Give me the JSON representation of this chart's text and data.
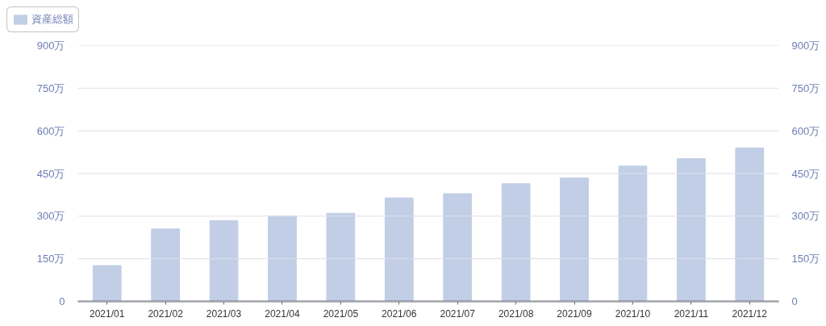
{
  "chart_data": {
    "type": "bar",
    "categories": [
      "2021/01",
      "2021/02",
      "2021/03",
      "2021/04",
      "2021/05",
      "2021/06",
      "2021/07",
      "2021/08",
      "2021/09",
      "2021/10",
      "2021/11",
      "2021/12"
    ],
    "series": [
      {
        "name": "資産総額",
        "color": "#c1cee6",
        "values": [
          126,
          255,
          284,
          300,
          310,
          364,
          379,
          414,
          434,
          476,
          502,
          540
        ]
      }
    ],
    "ylim": [
      0,
      900
    ],
    "yticks": [
      0,
      {
        "value": 150,
        "label": "150万"
      },
      {
        "value": 300,
        "label": "300万"
      },
      {
        "value": 450,
        "label": "450万"
      },
      {
        "value": 600,
        "label": "600万"
      },
      {
        "value": 750,
        "label": "750万"
      },
      {
        "value": 900,
        "label": "900万"
      }
    ],
    "y2lim": [
      0,
      900
    ],
    "y2ticks": [
      0,
      {
        "value": 150,
        "label": "150万"
      },
      {
        "value": 300,
        "label": "300万"
      },
      {
        "value": 450,
        "label": "450万"
      },
      {
        "value": 600,
        "label": "600万"
      },
      {
        "value": 750,
        "label": "750万"
      },
      {
        "value": 900,
        "label": "900万"
      }
    ],
    "grid": "y",
    "legend": "top left"
  }
}
